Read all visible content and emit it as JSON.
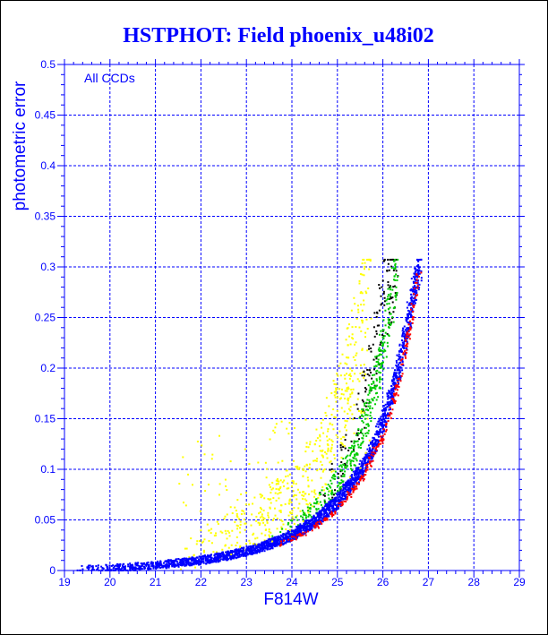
{
  "chart_data": {
    "type": "scatter",
    "title": "HSTPHOT: Field phoenix_u48i02",
    "xlabel": "F814W",
    "ylabel": "photometric error",
    "annotation": "All CCDs",
    "xlim": [
      19,
      29
    ],
    "ylim": [
      0,
      0.5
    ],
    "xticks": [
      "19",
      "20",
      "21",
      "22",
      "23",
      "24",
      "25",
      "26",
      "27",
      "28",
      "29"
    ],
    "yticks": [
      "0",
      "0.05",
      "0.1",
      "0.15",
      "0.2",
      "0.25",
      "0.3",
      "0.35",
      "0.4",
      "0.45",
      "0.5"
    ],
    "grid": true,
    "series": [
      {
        "color": "#0000ff",
        "description_points": [
          [
            19.2,
            0.002
          ],
          [
            20.0,
            0.003
          ],
          [
            21.0,
            0.006
          ],
          [
            22.0,
            0.011
          ],
          [
            22.5,
            0.015
          ],
          [
            23.0,
            0.02
          ],
          [
            23.5,
            0.027
          ],
          [
            24.0,
            0.036
          ],
          [
            24.5,
            0.05
          ],
          [
            25.0,
            0.07
          ],
          [
            25.5,
            0.1
          ],
          [
            25.8,
            0.125
          ],
          [
            26.0,
            0.15
          ],
          [
            26.2,
            0.18
          ],
          [
            26.4,
            0.215
          ],
          [
            26.55,
            0.25
          ],
          [
            26.7,
            0.285
          ],
          [
            26.8,
            0.305
          ]
        ]
      },
      {
        "color": "#ff0000",
        "description_points": [
          [
            23.5,
            0.024
          ],
          [
            24.0,
            0.032
          ],
          [
            24.5,
            0.044
          ],
          [
            25.0,
            0.062
          ],
          [
            25.5,
            0.09
          ],
          [
            26.0,
            0.135
          ],
          [
            26.3,
            0.18
          ],
          [
            26.6,
            0.245
          ],
          [
            26.8,
            0.3
          ]
        ]
      },
      {
        "color": "#00cc00",
        "description_points": [
          [
            23.5,
            0.03
          ],
          [
            24.0,
            0.042
          ],
          [
            24.5,
            0.06
          ],
          [
            25.0,
            0.088
          ],
          [
            25.3,
            0.11
          ],
          [
            25.6,
            0.15
          ],
          [
            25.9,
            0.2
          ],
          [
            26.1,
            0.25
          ],
          [
            26.3,
            0.3
          ]
        ]
      },
      {
        "color": "#ffff00",
        "description_points": [
          [
            21.5,
            0.02
          ],
          [
            22.0,
            0.025
          ],
          [
            22.5,
            0.035
          ],
          [
            23.0,
            0.045
          ],
          [
            23.5,
            0.06
          ],
          [
            24.0,
            0.075
          ],
          [
            24.5,
            0.1
          ],
          [
            24.8,
            0.13
          ],
          [
            25.0,
            0.165
          ],
          [
            25.3,
            0.2
          ],
          [
            25.5,
            0.25
          ],
          [
            25.7,
            0.3
          ]
        ]
      },
      {
        "color": "#000000",
        "description_points": [
          [
            24.5,
            0.06
          ],
          [
            25.0,
            0.1
          ],
          [
            25.5,
            0.16
          ],
          [
            25.8,
            0.22
          ],
          [
            26.0,
            0.27
          ],
          [
            26.3,
            0.3
          ]
        ]
      }
    ]
  },
  "colors": {
    "title": "#0000ff",
    "grid": "#0000ff",
    "text": "#0000ff",
    "frame": "#0000ff",
    "background": "#ffffff"
  }
}
